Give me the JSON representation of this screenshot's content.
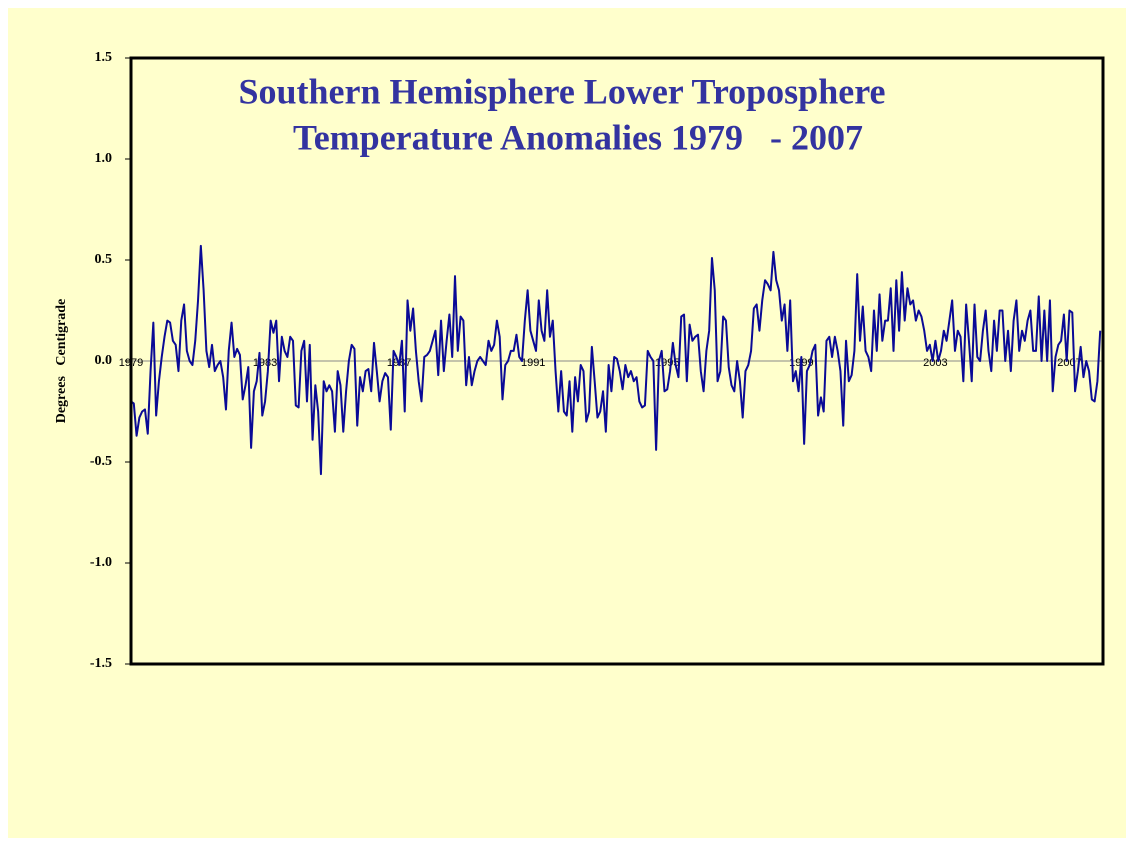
{
  "chart_data": {
    "type": "line",
    "title": [
      "Southern Hemisphere Lower Troposphere",
      "Temperature Anomalies 1979   - 2007"
    ],
    "y_label": "Degrees   Centigrade",
    "color": "#0a0a96",
    "ylim": [
      -1.5,
      1.5
    ],
    "yticks": [
      {
        "value": -1.5,
        "label": "-1.5"
      },
      {
        "value": -1,
        "label": "-1.0"
      },
      {
        "value": -0.5,
        "label": "-0.5"
      },
      {
        "value": 0,
        "label": "0.0"
      },
      {
        "value": 0.5,
        "label": "0.5"
      },
      {
        "value": 1,
        "label": "1.0"
      },
      {
        "value": 1.5,
        "label": "1.5"
      }
    ],
    "categories": [
      "1979",
      null,
      null,
      null,
      null,
      null,
      null,
      null,
      null,
      null,
      null,
      null,
      null,
      null,
      null,
      null,
      null,
      null,
      null,
      null,
      null,
      null,
      null,
      null,
      null,
      null,
      null,
      null,
      null,
      null,
      null,
      null,
      null,
      null,
      null,
      null,
      null,
      null,
      null,
      null,
      null,
      null,
      null,
      null,
      null,
      null,
      null,
      null,
      "1983",
      null,
      null,
      null,
      null,
      null,
      null,
      null,
      null,
      null,
      null,
      null,
      null,
      null,
      null,
      null,
      null,
      null,
      null,
      null,
      null,
      null,
      null,
      null,
      null,
      null,
      null,
      null,
      null,
      null,
      null,
      null,
      null,
      null,
      null,
      null,
      null,
      null,
      null,
      null,
      null,
      null,
      null,
      null,
      null,
      null,
      null,
      null,
      "1987",
      null,
      null,
      null,
      null,
      null,
      null,
      null,
      null,
      null,
      null,
      null,
      null,
      null,
      null,
      null,
      null,
      null,
      null,
      null,
      null,
      null,
      null,
      null,
      null,
      null,
      null,
      null,
      null,
      null,
      null,
      null,
      null,
      null,
      null,
      null,
      null,
      null,
      null,
      null,
      null,
      null,
      null,
      null,
      null,
      null,
      null,
      null,
      "1991",
      null,
      null,
      null,
      null,
      null,
      null,
      null,
      null,
      null,
      null,
      null,
      null,
      null,
      null,
      null,
      null,
      null,
      null,
      null,
      null,
      null,
      null,
      null,
      null,
      null,
      null,
      null,
      null,
      null,
      null,
      null,
      null,
      null,
      null,
      null,
      null,
      null,
      null,
      null,
      null,
      null,
      null,
      null,
      null,
      null,
      null,
      null,
      "1995",
      null,
      null,
      null,
      null,
      null,
      null,
      null,
      null,
      null,
      null,
      null,
      null,
      null,
      null,
      null,
      null,
      null,
      null,
      null,
      null,
      null,
      null,
      null,
      null,
      null,
      null,
      null,
      null,
      null,
      null,
      null,
      null,
      null,
      null,
      null,
      null,
      null,
      null,
      null,
      null,
      null,
      null,
      null,
      null,
      null,
      null,
      null,
      "1999",
      null,
      null,
      null,
      null,
      null,
      null,
      null,
      null,
      null,
      null,
      null,
      null,
      null,
      null,
      null,
      null,
      null,
      null,
      null,
      null,
      null,
      null,
      null,
      null,
      null,
      null,
      null,
      null,
      null,
      null,
      null,
      null,
      null,
      null,
      null,
      null,
      null,
      null,
      null,
      null,
      null,
      null,
      null,
      null,
      null,
      null,
      null,
      "2003",
      null,
      null,
      null,
      null,
      null,
      null,
      null,
      null,
      null,
      null,
      null,
      null,
      null,
      null,
      null,
      null,
      null,
      null,
      null,
      null,
      null,
      null,
      null,
      null,
      null,
      null,
      null,
      null,
      null,
      null,
      null,
      null,
      null,
      null,
      null,
      null,
      null,
      null,
      null,
      null,
      null,
      null,
      null,
      null,
      null,
      null,
      null,
      "2007",
      null,
      null,
      null,
      null,
      null,
      null,
      null,
      null,
      null,
      null,
      null
    ],
    "values": [
      -0.2,
      -0.21,
      -0.37,
      -0.28,
      -0.25,
      -0.24,
      -0.36,
      -0.05,
      0.19,
      -0.27,
      -0.1,
      0.02,
      0.12,
      0.2,
      0.19,
      0.1,
      0.08,
      -0.05,
      0.2,
      0.28,
      0.05,
      0.0,
      -0.02,
      0.1,
      0.3,
      0.57,
      0.35,
      0.05,
      -0.03,
      0.08,
      -0.05,
      -0.02,
      0.0,
      -0.08,
      -0.24,
      0.05,
      0.19,
      0.02,
      0.06,
      0.03,
      -0.19,
      -0.12,
      -0.03,
      -0.43,
      -0.15,
      -0.1,
      0.04,
      -0.27,
      -0.2,
      -0.05,
      0.2,
      0.14,
      0.2,
      -0.1,
      0.12,
      0.05,
      0.02,
      0.12,
      0.1,
      -0.22,
      -0.23,
      0.05,
      0.1,
      -0.2,
      0.08,
      -0.39,
      -0.12,
      -0.25,
      -0.56,
      -0.1,
      -0.15,
      -0.12,
      -0.15,
      -0.35,
      -0.05,
      -0.12,
      -0.35,
      -0.15,
      0.0,
      0.08,
      0.06,
      -0.32,
      -0.08,
      -0.15,
      -0.05,
      -0.04,
      -0.15,
      0.09,
      -0.05,
      -0.2,
      -0.1,
      -0.06,
      -0.08,
      -0.34,
      0.05,
      0.02,
      -0.02,
      0.1,
      -0.25,
      0.3,
      0.15,
      0.26,
      0.05,
      -0.1,
      -0.2,
      0.02,
      0.03,
      0.05,
      0.1,
      0.15,
      -0.07,
      0.2,
      -0.05,
      0.1,
      0.23,
      0.02,
      0.42,
      0.05,
      0.22,
      0.2,
      -0.12,
      0.02,
      -0.12,
      -0.05,
      0.0,
      0.02,
      0.0,
      -0.02,
      0.1,
      0.05,
      0.08,
      0.2,
      0.12,
      -0.19,
      -0.02,
      0.0,
      0.05,
      0.05,
      0.13,
      0.02,
      0.0,
      0.2,
      0.35,
      0.15,
      0.1,
      0.05,
      0.3,
      0.15,
      0.1,
      0.35,
      0.12,
      0.2,
      -0.05,
      -0.25,
      -0.05,
      -0.25,
      -0.27,
      -0.1,
      -0.35,
      -0.08,
      -0.2,
      -0.02,
      -0.05,
      -0.3,
      -0.25,
      0.07,
      -0.1,
      -0.28,
      -0.25,
      -0.15,
      -0.35,
      -0.02,
      -0.15,
      0.02,
      0.01,
      -0.05,
      -0.14,
      -0.02,
      -0.08,
      -0.05,
      -0.1,
      -0.08,
      -0.2,
      -0.23,
      -0.22,
      0.05,
      0.02,
      0.0,
      -0.44,
      0.0,
      0.05,
      -0.15,
      -0.14,
      -0.05,
      0.09,
      -0.02,
      -0.08,
      0.22,
      0.23,
      -0.1,
      0.18,
      0.1,
      0.12,
      0.13,
      -0.05,
      -0.15,
      0.05,
      0.15,
      0.51,
      0.35,
      -0.1,
      -0.05,
      0.22,
      0.2,
      -0.03,
      -0.12,
      -0.15,
      0.0,
      -0.1,
      -0.28,
      -0.05,
      -0.02,
      0.05,
      0.26,
      0.28,
      0.15,
      0.3,
      0.4,
      0.38,
      0.35,
      0.54,
      0.4,
      0.35,
      0.2,
      0.28,
      0.05,
      0.3,
      -0.1,
      -0.05,
      -0.15,
      0.02,
      -0.41,
      -0.05,
      -0.02,
      0.05,
      0.08,
      -0.27,
      -0.18,
      -0.25,
      0.1,
      0.12,
      0.02,
      0.12,
      0.05,
      -0.05,
      -0.32,
      0.1,
      -0.1,
      -0.07,
      0.05,
      0.43,
      0.1,
      0.27,
      0.05,
      0.02,
      -0.05,
      0.25,
      0.05,
      0.33,
      0.1,
      0.2,
      0.2,
      0.36,
      0.05,
      0.4,
      0.15,
      0.44,
      0.2,
      0.36,
      0.28,
      0.3,
      0.2,
      0.25,
      0.22,
      0.15,
      0.05,
      0.08,
      0.0,
      0.1,
      0.0,
      0.05,
      0.15,
      0.1,
      0.2,
      0.3,
      0.05,
      0.15,
      0.12,
      -0.1,
      0.28,
      0.1,
      -0.1,
      0.28,
      0.02,
      0.0,
      0.15,
      0.25,
      0.05,
      -0.05,
      0.2,
      0.05,
      0.25,
      0.25,
      0.0,
      0.15,
      -0.05,
      0.2,
      0.3,
      0.05,
      0.15,
      0.1,
      0.2,
      0.25,
      0.05,
      0.05,
      0.32,
      0.0,
      0.25,
      0.0,
      0.3,
      -0.15,
      0.02,
      0.08,
      0.1,
      0.23,
      0.0,
      0.25,
      0.24,
      -0.15,
      -0.05,
      0.07,
      -0.08,
      0.0,
      -0.05,
      -0.19,
      -0.2,
      -0.1,
      0.15
    ]
  }
}
